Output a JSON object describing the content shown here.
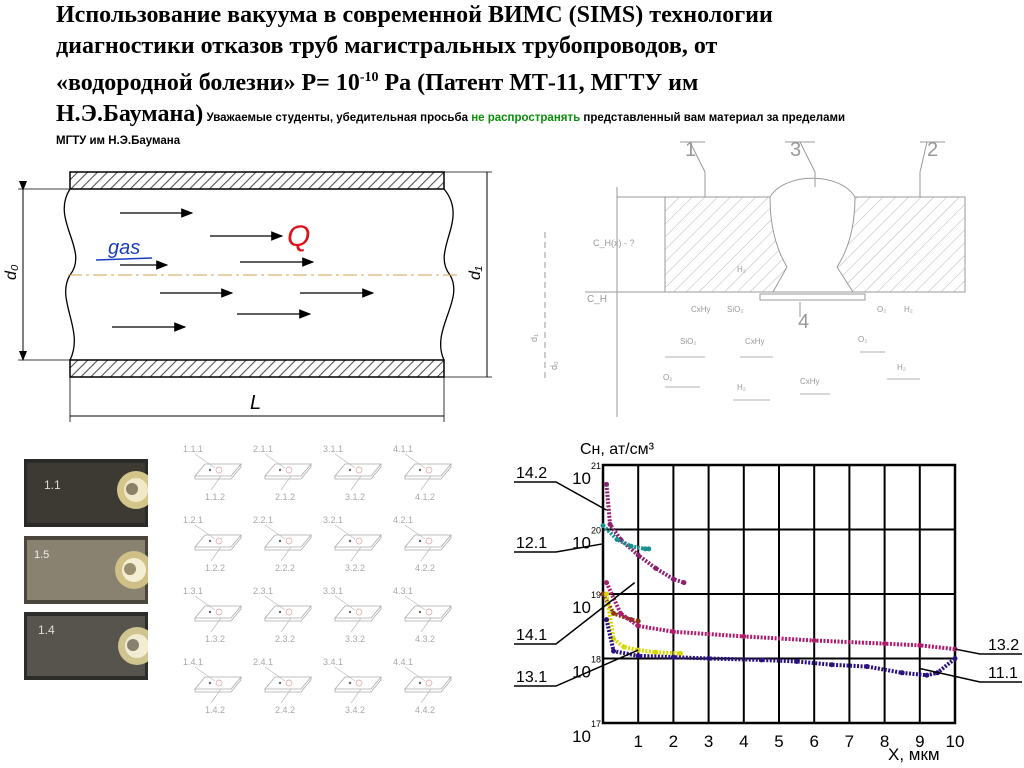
{
  "title": {
    "line1": "Использование вакуума  в современной ВИМС (SIMS) технологии",
    "line2": "диагностики отказов труб магистральных трубопроводов, от",
    "line3_pre": "«водородной болезни» P= 10",
    "line3_exp": "-10",
    "line3_post": " Pa (Патент МТ-11,  МГТУ им",
    "line4": "Н.Э.Баумана)",
    "notice_pre": " Уважаемые студенты, убедительная просьба ",
    "notice_green": "не распространять",
    "notice_post": " представленный вам материал за пределами",
    "notice_line2": "МГТУ им Н.Э.Баумана"
  },
  "pipe": {
    "gas_label": "gas",
    "q_label": "Q",
    "d0_label": "d₀",
    "d1_label": "d₁",
    "length_label": "L",
    "colors": {
      "hatch": "#555555",
      "gas": "#1a3cc0",
      "q": "#e0101a",
      "axis": "#d4a050"
    }
  },
  "weld": {
    "labels": [
      "1",
      "3",
      "2",
      "4"
    ],
    "cnx_label": "C_H(x) - ?",
    "cn_label": "C_H",
    "h2_label": "H₂",
    "d1_label": "d₁",
    "d0_label": "d₀",
    "species_top": [
      "CxHy",
      "SiO₂",
      "O₂",
      "H₂"
    ],
    "species_row1": [
      "SiO₂",
      "CxHy",
      "O₂"
    ],
    "species_row2": [
      "O₂",
      "H₂",
      "CxHy",
      "H₂"
    ]
  },
  "samples": {
    "rows": [
      {
        "top": [
          "1.1.1",
          "2.1.1",
          "3.1.1",
          "4.1.1"
        ],
        "bottom": [
          "1.1.2",
          "2.1.2",
          "3.1.2",
          "4.1.2"
        ]
      },
      {
        "top": [
          "1.2.1",
          "2.2.1",
          "3.2.1",
          "4.2.1"
        ],
        "bottom": [
          "1.2.2",
          "2.2.2",
          "3.2.2",
          "4.2.2"
        ]
      },
      {
        "top": [
          "1.3.1",
          "2.3.1",
          "3.3.1",
          "4.3.1"
        ],
        "bottom": [
          "1.3.2",
          "2.3.2",
          "3.3.2",
          "4.3.2"
        ]
      },
      {
        "top": [
          "1.4.1",
          "2.4.1",
          "3.4.1",
          "4.4.1"
        ],
        "bottom": [
          "1.4.2",
          "2.4.2",
          "3.4.2",
          "4.4.2"
        ]
      }
    ],
    "photo_labels": [
      "1.1",
      "1.5",
      "1.4"
    ]
  },
  "chart_data": {
    "type": "line",
    "yscale": "log",
    "ylabel": "Сн, ат/см³",
    "xlabel": "X,  мкм",
    "xlim": [
      0,
      10
    ],
    "ylim": [
      1e+17,
      1e+21
    ],
    "xticks": [
      1,
      2,
      3,
      4,
      5,
      6,
      7,
      8,
      9,
      10
    ],
    "ytick_base": "10",
    "ytick_exps": [
      "17",
      "18",
      "19",
      "20",
      "21"
    ],
    "grid": true,
    "series": [
      {
        "name": "14.2",
        "color": "#8a2070",
        "points": [
          [
            0.1,
            5e+20
          ],
          [
            0.2,
            1.2e+20
          ],
          [
            0.5,
            7e+19
          ],
          [
            1.0,
            4e+19
          ],
          [
            1.5,
            2.5e+19
          ],
          [
            2.0,
            1.7e+19
          ],
          [
            2.3,
            1.5e+19
          ]
        ]
      },
      {
        "name": "12.1",
        "color": "#1a9090",
        "points": [
          [
            0.0,
            1.15e+20
          ],
          [
            0.4,
            7e+19
          ],
          [
            0.8,
            5.5e+19
          ],
          [
            1.2,
            5e+19
          ],
          [
            1.3,
            5e+19
          ]
        ]
      },
      {
        "name": "14.1",
        "color": "#8a3a10",
        "points": [
          [
            0.0,
            1e+19
          ],
          [
            0.3,
            5e+18
          ],
          [
            0.8,
            4e+18
          ],
          [
            1.0,
            3.8e+18
          ]
        ]
      },
      {
        "name": "13.2",
        "color": "#b01b6e",
        "points": [
          [
            0.1,
            1.5e+19
          ],
          [
            0.5,
            5e+18
          ],
          [
            1.0,
            3.2e+18
          ],
          [
            2.0,
            2.6e+18
          ],
          [
            4.0,
            2.2e+18
          ],
          [
            6.0,
            1.9e+18
          ],
          [
            8.0,
            1.7e+18
          ],
          [
            9.0,
            1.6e+18
          ],
          [
            10.0,
            1.4e+18
          ]
        ]
      },
      {
        "name": "13.1",
        "color": "#d8d800",
        "points": [
          [
            0.1,
            1e+19
          ],
          [
            0.3,
            2e+18
          ],
          [
            0.6,
            1.5e+18
          ],
          [
            1.0,
            1.35e+18
          ],
          [
            1.5,
            1.25e+18
          ],
          [
            2.2,
            1.2e+18
          ]
        ]
      },
      {
        "name": "11.1",
        "color": "#2a1080",
        "points": [
          [
            0.1,
            4e+18
          ],
          [
            0.3,
            1.3e+18
          ],
          [
            1.0,
            1.1e+18
          ],
          [
            2.0,
            1.05e+18
          ],
          [
            3.0,
            1e+18
          ],
          [
            4.5,
            9.5e+17
          ],
          [
            5.5,
            9e+17
          ],
          [
            6.5,
            8e+17
          ],
          [
            7.5,
            7.5e+17
          ],
          [
            8.5,
            6e+17
          ],
          [
            9.2,
            5.5e+17
          ],
          [
            9.5,
            6e+17
          ],
          [
            10.0,
            1e+18
          ]
        ]
      }
    ],
    "label_marks": [
      {
        "name": "14.2",
        "side": "left",
        "at": [
          0.1,
          2e+20
        ]
      },
      {
        "name": "12.1",
        "side": "left",
        "at": [
          0.0,
          6e+19
        ]
      },
      {
        "name": "14.1",
        "side": "left",
        "at": [
          0.9,
          1.5e+19
        ]
      },
      {
        "name": "13.1",
        "side": "left",
        "at": [
          1.0,
          1.35e+18
        ]
      },
      {
        "name": "13.2",
        "side": "right",
        "at": [
          10.0,
          1.4e+18
        ]
      },
      {
        "name": "11.1",
        "side": "right",
        "at": [
          9.0,
          7e+17
        ]
      }
    ]
  }
}
